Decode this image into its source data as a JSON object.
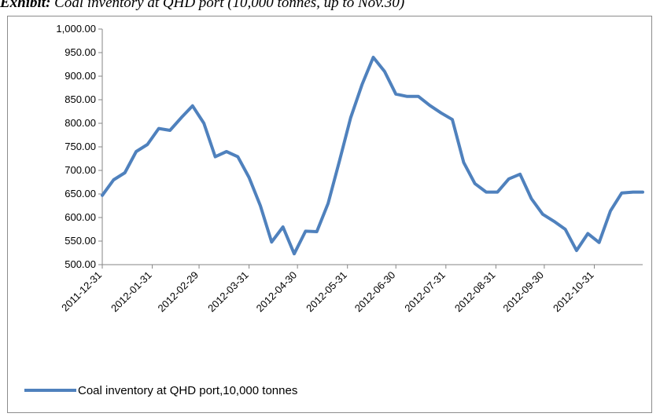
{
  "exhibit": {
    "label": "Exhibit:",
    "title": "Coal inventory at QHD port",
    "units_note": "(10,000 tonnes, up to Nov.30)"
  },
  "chart_data": {
    "type": "line",
    "title": "",
    "xlabel": "",
    "ylabel": "",
    "ylim": [
      500,
      1000
    ],
    "yticks": [
      "1,000.00",
      "950.00",
      "900.00",
      "850.00",
      "800.00",
      "750.00",
      "700.00",
      "650.00",
      "600.00",
      "550.00",
      "500.00"
    ],
    "ytick_values": [
      1000,
      950,
      900,
      850,
      800,
      750,
      700,
      650,
      600,
      550,
      500
    ],
    "xticks": [
      "2011-12-31",
      "2012-01-31",
      "2012-02-29",
      "2012-03-31",
      "2012-04-30",
      "2012-05-31",
      "2012-06-30",
      "2012-07-31",
      "2012-08-31",
      "2012-09-30",
      "2012-10-31"
    ],
    "x_start": "2011-12-31",
    "x_end": "2012-11-30",
    "grid": false,
    "legend_position": "bottom-left",
    "series": [
      {
        "name": "Coal inventory at QHD port,10,000 tonnes",
        "color": "#4f81bd",
        "x": [
          "2011-12-31",
          "2012-01-07",
          "2012-01-14",
          "2012-01-21",
          "2012-01-28",
          "2012-02-04",
          "2012-02-11",
          "2012-02-18",
          "2012-02-25",
          "2012-03-03",
          "2012-03-10",
          "2012-03-17",
          "2012-03-24",
          "2012-03-31",
          "2012-04-07",
          "2012-04-14",
          "2012-04-21",
          "2012-04-28",
          "2012-05-05",
          "2012-05-12",
          "2012-05-19",
          "2012-05-26",
          "2012-06-02",
          "2012-06-09",
          "2012-06-16",
          "2012-06-23",
          "2012-06-30",
          "2012-07-07",
          "2012-07-14",
          "2012-07-21",
          "2012-07-28",
          "2012-08-04",
          "2012-08-11",
          "2012-08-18",
          "2012-08-25",
          "2012-09-01",
          "2012-09-08",
          "2012-09-15",
          "2012-09-22",
          "2012-09-29",
          "2012-10-06",
          "2012-10-13",
          "2012-10-20",
          "2012-10-27",
          "2012-11-03",
          "2012-11-10",
          "2012-11-17",
          "2012-11-24",
          "2012-11-30"
        ],
        "y": [
          647,
          680,
          695,
          740,
          755,
          789,
          785,
          812,
          837,
          800,
          729,
          740,
          729,
          685,
          625,
          548,
          580,
          523,
          571,
          570,
          630,
          720,
          812,
          882,
          940,
          910,
          862,
          857,
          857,
          838,
          822,
          808,
          717,
          672,
          654,
          654,
          682,
          692,
          640,
          607,
          592,
          575,
          530,
          566,
          547,
          614,
          652,
          654,
          654
        ]
      }
    ]
  }
}
